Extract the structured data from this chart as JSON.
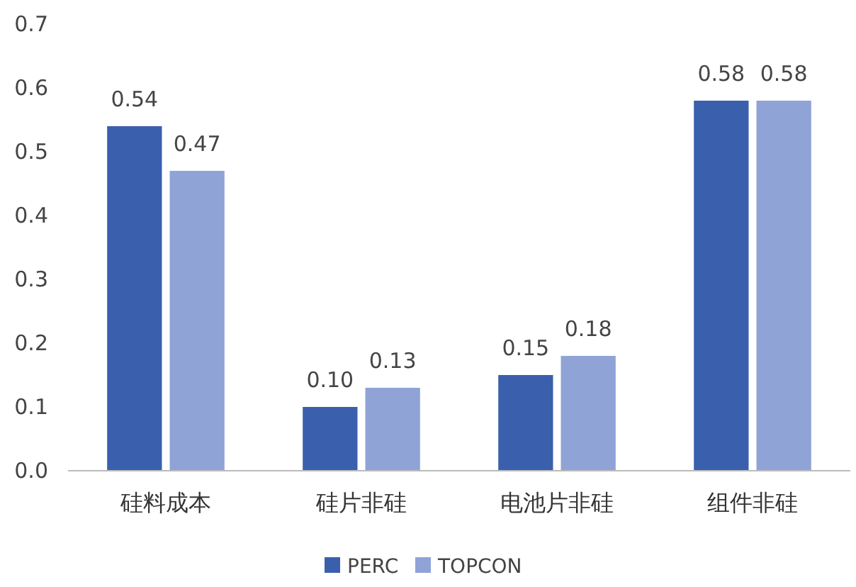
{
  "chart_data": {
    "type": "bar",
    "categories": [
      "硅料成本",
      "硅片非硅",
      "电池片非硅",
      "组件非硅"
    ],
    "series": [
      {
        "name": "PERC",
        "color": "#3a5fad",
        "values": [
          0.54,
          0.1,
          0.15,
          0.58
        ]
      },
      {
        "name": "TOPCON",
        "color": "#8fa3d6",
        "values": [
          0.47,
          0.13,
          0.18,
          0.58
        ]
      }
    ],
    "ylim": [
      0,
      0.7
    ],
    "yticks": [
      {
        "value": 0,
        "label": "0.0"
      },
      {
        "value": 0.1,
        "label": "0.1"
      },
      {
        "value": 0.2,
        "label": "0.2"
      },
      {
        "value": 0.3,
        "label": "0.3"
      },
      {
        "value": 0.4,
        "label": "0.4"
      },
      {
        "value": 0.5,
        "label": "0.5"
      },
      {
        "value": 0.6,
        "label": "0.6"
      },
      {
        "value": 0.7,
        "label": "0.7"
      }
    ],
    "grid": false,
    "legend": "bottom",
    "value_labels": [
      [
        "0.54",
        "0.10",
        "0.15",
        "0.58"
      ],
      [
        "0.47",
        "0.13",
        "0.18",
        "0.58"
      ]
    ]
  }
}
